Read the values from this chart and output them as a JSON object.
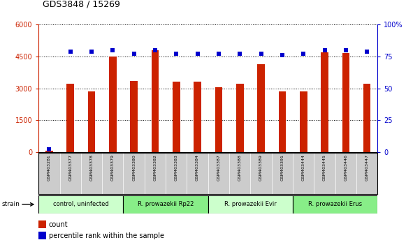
{
  "title": "GDS3848 / 15269",
  "samples": [
    "GSM403281",
    "GSM403377",
    "GSM403378",
    "GSM403379",
    "GSM403380",
    "GSM403382",
    "GSM403383",
    "GSM403384",
    "GSM403387",
    "GSM403388",
    "GSM403389",
    "GSM403391",
    "GSM403444",
    "GSM403445",
    "GSM403446",
    "GSM403447"
  ],
  "counts": [
    50,
    3200,
    2850,
    4500,
    3350,
    4800,
    3300,
    3300,
    3050,
    3200,
    4150,
    2850,
    2850,
    4700,
    4650,
    3200
  ],
  "percentiles": [
    2,
    79,
    79,
    80,
    77,
    80,
    77,
    77,
    77,
    77,
    77,
    76,
    77,
    80,
    80,
    79
  ],
  "groups": [
    {
      "label": "control, uninfected",
      "start": 0,
      "end": 4,
      "color": "#ccffcc"
    },
    {
      "label": "R. prowazekii Rp22",
      "start": 4,
      "end": 8,
      "color": "#88ee88"
    },
    {
      "label": "R. prowazekii Evir",
      "start": 8,
      "end": 12,
      "color": "#ccffcc"
    },
    {
      "label": "R. prowazekii Erus",
      "start": 12,
      "end": 16,
      "color": "#88ee88"
    }
  ],
  "ylim_left": [
    0,
    6000
  ],
  "ylim_right": [
    0,
    100
  ],
  "yticks_left": [
    0,
    1500,
    3000,
    4500,
    6000
  ],
  "ytick_labels_left": [
    "0",
    "1500",
    "3000",
    "4500",
    "6000"
  ],
  "yticks_right": [
    0,
    25,
    50,
    75,
    100
  ],
  "ytick_labels_right": [
    "0",
    "25",
    "50",
    "75",
    "100%"
  ],
  "bar_color": "#cc2200",
  "dot_color": "#0000cc",
  "bar_width": 0.35,
  "dot_size": 20,
  "label_bg_color": "#cccccc",
  "count_label": "count",
  "percentile_label": "percentile rank within the sample",
  "strain_label": "strain"
}
